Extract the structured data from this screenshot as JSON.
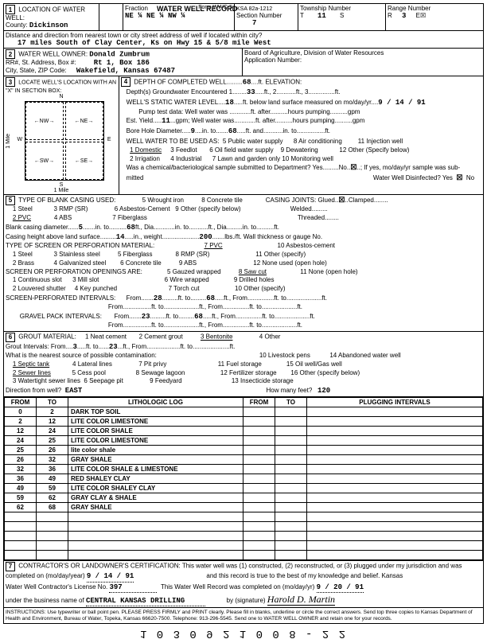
{
  "form": {
    "title": "WATER WELL RECORD",
    "form_no": "Form WWC-5",
    "ksa": "KSA 82a-1212"
  },
  "sec1": {
    "label": "LOCATION OF WATER WELL:",
    "county_label": "County:",
    "county": "Dickinson",
    "fraction_label": "Fraction",
    "fraction": "NE ¼    NE ¼    NW ¼",
    "section_label": "Section Number",
    "section": "7",
    "township_label": "Township Number",
    "township_t": "T",
    "township": "11",
    "township_s": "S",
    "range_label": "Range Number",
    "range_r": "R",
    "range": "3",
    "range_dir": "E☒",
    "distance_label": "Distance and direction from nearest town or city street address of well if located within city?",
    "distance": "17 miles South of Clay Center, Ks on Hwy 15 & 5/8 mile West"
  },
  "sec2": {
    "label": "WATER WELL OWNER:",
    "owner": "Donald Zumbrum",
    "addr_label": "RR#, St. Address, Box #:",
    "addr": "Rt 1, Box 186",
    "city_label": "City, State, ZIP Code:",
    "city": "Wakefield, Kansas  67487",
    "board": "Board of Agriculture, Division of Water Resources",
    "app_label": "Application Number:"
  },
  "sec3": {
    "label": "LOCATE WELL'S LOCATION WITH AN \"X\" IN SECTION BOX:",
    "n": "N",
    "s": "S",
    "e": "E",
    "w": "W",
    "nw": "NW",
    "ne": "NE",
    "sw": "SW",
    "se": "SE",
    "mile": "1 Mile",
    "mile2": "1 Mile"
  },
  "sec4": {
    "label": "DEPTH OF COMPLETED WELL",
    "depth": "68",
    "depth_unit": "ft. ELEVATION:",
    "gw_label": "Depth(s) Groundwater Encountered   1.",
    "gw1": "33",
    "gw_unit": "ft.,  2.",
    "gw_unit3": "ft.,  3.",
    "gw_ft": "ft.",
    "static_label": "WELL'S STATIC WATER LEVEL",
    "static": "18",
    "static_unit": "ft. below land surface measured on mo/day/yr",
    "static_date": "9 / 14 / 91",
    "pump_label": "Pump test data:  Well water was",
    "pump_ft": "ft. after",
    "pump_hrs": "hours pumping",
    "pump_gpm": "gpm",
    "est_label": "Est. Yield",
    "est_yield": "11",
    "est_unit": "gpm; Well water was",
    "bore_label": "Bore Hole Diameter",
    "bore1": "9",
    "bore_in": "in. to",
    "bore2": "68",
    "bore_ft": "ft.  and",
    "bore_in2": "in. to",
    "bore_ft2": "ft.",
    "use_label": "WELL WATER TO BE USED AS:",
    "use1": "1 Domestic",
    "use2": "2 Irrigation",
    "use3": "3 Feedlot",
    "use4": "4 Industrial",
    "use5": "5 Public water supply",
    "use6": "6 Oil field water supply",
    "use7": "7 Lawn and garden only",
    "use8": "8 Air conditioning",
    "use9": "9 Dewatering",
    "use10": "10 Monitoring well",
    "use11": "11 Injection well",
    "use12": "12 Other (Specify below)",
    "chem_label": "Was a chemical/bacteriological sample submitted to Department?  Yes",
    "chem_no": "No",
    "chem_mark": "☒",
    "chem_if": "; If yes, mo/day/yr sample was sub-",
    "mitted": "mitted",
    "disinfect": "Water Well Disinfected?  Yes",
    "disinfect_mark": "☒",
    "disinfect_no": "No"
  },
  "sec5": {
    "label": "TYPE OF BLANK CASING USED:",
    "c1": "1 Steel",
    "c2": "2 PVC",
    "c3": "3 RMP (SR)",
    "c4": "4 ABS",
    "c5": "5 Wrought iron",
    "c6": "6 Asbestos-Cement",
    "c7": "7 Fiberglass",
    "c8": "8 Concrete tile",
    "c9": "9 Other (specify below)",
    "joints_label": "CASING JOINTS: Glued",
    "joints_mark": "☒",
    "joints_clamped": "Clamped",
    "joints_welded": "Welded",
    "joints_threaded": "Threaded",
    "blank_dia_label": "Blank casing diameter",
    "blank_dia": "5",
    "blank_in": "in. to",
    "blank_to": "68",
    "blank_ft": "ft., Dia",
    "blank_in2": "in. to",
    "blank_ft2": "ft., Dia",
    "blank_in3": "in. to",
    "blank_ft3": "ft.",
    "height_label": "Casing height above land surface",
    "height": "14",
    "height_in": "in., weight",
    "weight": "200",
    "weight_lbs": "lbs./ft. Wall thickness or gauge No.",
    "screen_label": "TYPE OF SCREEN OR PERFORATION MATERIAL:",
    "s1": "1 Steel",
    "s2": "2 Brass",
    "s3": "3 Stainless steel",
    "s4": "4 Galvanized steel",
    "s5": "5 Fiberglass",
    "s6": "6 Concrete tile",
    "s7": "7 PVC",
    "s8": "8 RMP (SR)",
    "s9": "9 ABS",
    "s10": "10 Asbestos-cement",
    "s11": "11 Other (specify)",
    "s12": "12 None used (open hole)",
    "open_label": "SCREEN OR PERFORATION OPENINGS ARE:",
    "o1": "1 Continuous slot",
    "o2": "2 Louvered shutter",
    "o3": "3 Mill slot",
    "o4": "4 Key punched",
    "o5": "5 Gauzed wrapped",
    "o6": "6 Wire wrapped",
    "o7": "7 Torch cut",
    "o8": "8 Saw cut",
    "o9": "9 Drilled holes",
    "o10": "10 Other (specify)",
    "o11": "11 None (open hole)",
    "perf_label": "SCREEN-PERFORATED INTERVALS:",
    "perf_from": "From",
    "perf_from_v": "28",
    "perf_to": "ft. to",
    "perf_to_v": "68",
    "perf_ft": "ft., From",
    "perf_ft2": "ft. to",
    "perf_ft3": "ft.",
    "gravel_label": "GRAVEL PACK INTERVALS:",
    "gravel_from_v": "23",
    "gravel_to_v": "68"
  },
  "sec6": {
    "label": "GROUT MATERIAL:",
    "g1": "1 Neat cement",
    "g2": "2 Cement grout",
    "g3": "3 Bentonite",
    "g4": "4 Other",
    "interval_label": "Grout Intervals:    From",
    "int_from": "3",
    "int_to_lbl": "ft.  to",
    "int_to": "23",
    "int_ft": "ft.,  From",
    "int_ft2": "ft. to",
    "int_ft3": "ft.",
    "contam_label": "What is the nearest source of possible contamination:",
    "p1": "1 Septic tank",
    "p2": "2 Sewer lines",
    "p3": "3 Watertight sewer lines",
    "p4": "4 Lateral lines",
    "p5": "5 Cess pool",
    "p6": "6 Seepage pit",
    "p7": "7 Pit privy",
    "p8": "8 Sewage lagoon",
    "p9": "9 Feedyard",
    "p10": "10 Livestock pens",
    "p11": "11 Fuel storage",
    "p12": "12 Fertilizer storage",
    "p13": "13 Insecticide storage",
    "p14": "14 Abandoned water well",
    "p15": "15 Oil well/Gas well",
    "p16": "16 Other (specify below)",
    "dir_label": "Direction from well?",
    "dir": "EAST",
    "feet_label": "How many feet?",
    "feet": "120"
  },
  "lith": {
    "h_from": "FROM",
    "h_to": "TO",
    "h_log": "LITHOLOGIC LOG",
    "h_from2": "FROM",
    "h_to2": "TO",
    "h_plug": "PLUGGING INTERVALS",
    "rows": [
      {
        "from": "0",
        "to": "2",
        "log": "DARK TOP SOIL"
      },
      {
        "from": "2",
        "to": "12",
        "log": "LITE COLOR LIMESTONE"
      },
      {
        "from": "12",
        "to": "24",
        "log": "LITE COLOR SHALE"
      },
      {
        "from": "24",
        "to": "25",
        "log": "LITE COLOR LIMESTONE"
      },
      {
        "from": "25",
        "to": "26",
        "log": "lite color shale"
      },
      {
        "from": "26",
        "to": "32",
        "log": "GRAY SHALE"
      },
      {
        "from": "32",
        "to": "36",
        "log": "LITE COLOR SHALE & LIMESTONE"
      },
      {
        "from": "36",
        "to": "49",
        "log": "RED SHALEY CLAY"
      },
      {
        "from": "49",
        "to": "59",
        "log": "LITE COLOR SHALEY CLAY"
      },
      {
        "from": "59",
        "to": "62",
        "log": "GRAY CLAY & SHALE"
      },
      {
        "from": "62",
        "to": "68",
        "log": "GRAY SHALE"
      }
    ]
  },
  "sec7": {
    "label": "CONTRACTOR'S OR LANDOWNER'S CERTIFICATION: This water well was (1) constructed, (2) reconstructed, or (3) plugged under my jurisdiction and was",
    "completed_label": "completed on (mo/day/year)",
    "completed": "9 / 14 / 91",
    "record_true": "and this record is true to the best of my knowledge and belief. Kansas",
    "lic_label": "Water Well Contractor's License No.",
    "lic": "397",
    "rec_completed": "This Water Well Record was completed on (mo/day/yr)",
    "rec_date": "9 / 20 / 91",
    "bus_label": "under the business name of",
    "bus": "CENTRAL KANSAS DRILLING",
    "sig_label": "by (signature)",
    "sig": "Harold D. Martin"
  },
  "footer": {
    "instructions": "INSTRUCTIONS: Use typewriter or ball point pen. PLEASE PRESS FIRMLY and PRINT clearly. Please fill in blanks, underline or circle the correct answers. Send top three copies to Kansas Department of Health and Environment, Bureau of Water, Topeka, Kansas 66620-7500. Telephone: 913-296-5545. Send one to WATER WELL OWNER and retain one for your records.",
    "barcode": "1 0 3 0 9 2 1 0 0 8 - 2 2"
  }
}
